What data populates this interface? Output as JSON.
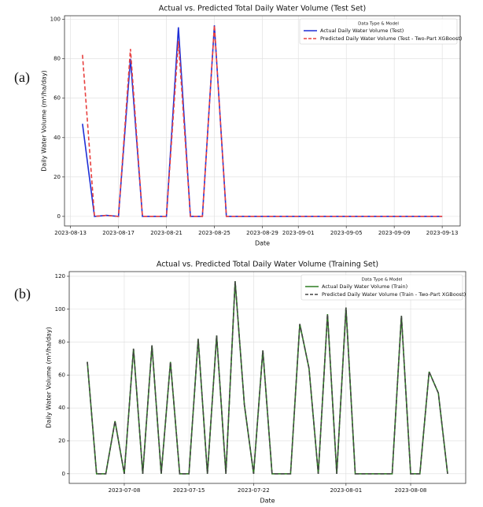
{
  "chart_data": [
    {
      "type": "line",
      "label": "(a)",
      "title": "Actual vs. Predicted Total Daily Water Volume (Test Set)",
      "x_label": "Date",
      "y_label": "Daily Water Volume (m³/ha/day)",
      "x": [
        "2023-08-14",
        "2023-08-15",
        "2023-08-16",
        "2023-08-17",
        "2023-08-18",
        "2023-08-19",
        "2023-08-20",
        "2023-08-21",
        "2023-08-22",
        "2023-08-23",
        "2023-08-24",
        "2023-08-25",
        "2023-08-26",
        "2023-08-27",
        "2023-08-28",
        "2023-08-29",
        "2023-08-30",
        "2023-08-31",
        "2023-09-01",
        "2023-09-02",
        "2023-09-03",
        "2023-09-04",
        "2023-09-05",
        "2023-09-06",
        "2023-09-07",
        "2023-09-08",
        "2023-09-09",
        "2023-09-10",
        "2023-09-11",
        "2023-09-12",
        "2023-09-13"
      ],
      "series": [
        {
          "name": "Actual Daily Water Volume (Test)",
          "color": "#1f2fd6",
          "linestyle": "solid",
          "values": [
            47,
            0,
            0.5,
            0,
            80,
            0,
            0,
            0,
            96,
            0,
            0,
            97,
            0,
            0,
            0,
            0,
            0,
            0,
            0,
            0,
            0,
            0,
            0,
            0,
            0,
            0,
            0,
            0,
            0,
            0,
            0
          ]
        },
        {
          "name": "Predicted Daily Water Volume (Test - Two-Part XGBoost)",
          "color": "#e8403f",
          "linestyle": "dashed",
          "values": [
            82,
            0,
            0.5,
            0,
            85,
            0,
            0,
            0,
            89,
            0,
            0,
            97,
            0,
            0,
            0,
            0,
            0,
            0,
            0,
            0,
            0,
            0,
            0,
            0,
            0,
            0,
            0,
            0,
            0,
            0,
            0
          ]
        }
      ],
      "xlim": [
        "2023-08-12T12:00",
        "2023-09-14T12:00"
      ],
      "xticks": [
        "2023-08-13",
        "2023-08-17",
        "2023-08-21",
        "2023-08-25",
        "2023-08-29",
        "2023-09-01",
        "2023-09-05",
        "2023-09-09",
        "2023-09-13"
      ],
      "ylim": [
        -4.85,
        101.85
      ],
      "yticks": [
        0,
        20,
        40,
        60,
        80,
        100
      ],
      "grid": true,
      "legend": "upper right",
      "legend_title": "Data Type & Model"
    },
    {
      "type": "line",
      "label": "(b)",
      "title": "Actual vs. Predicted Total Daily Water Volume (Training Set)",
      "x_label": "Date",
      "y_label": "Daily Water Volume (m³/ha/day)",
      "x": [
        "2023-07-04",
        "2023-07-05",
        "2023-07-06",
        "2023-07-07",
        "2023-07-08",
        "2023-07-09",
        "2023-07-10",
        "2023-07-11",
        "2023-07-12",
        "2023-07-13",
        "2023-07-14",
        "2023-07-15",
        "2023-07-16",
        "2023-07-17",
        "2023-07-18",
        "2023-07-19",
        "2023-07-20",
        "2023-07-21",
        "2023-07-22",
        "2023-07-23",
        "2023-07-24",
        "2023-07-25",
        "2023-07-26",
        "2023-07-27",
        "2023-07-28",
        "2023-07-29",
        "2023-07-30",
        "2023-07-31",
        "2023-08-01",
        "2023-08-02",
        "2023-08-03",
        "2023-08-04",
        "2023-08-05",
        "2023-08-06",
        "2023-08-07",
        "2023-08-08",
        "2023-08-09",
        "2023-08-10",
        "2023-08-11",
        "2023-08-12"
      ],
      "series": [
        {
          "name": "Actual Daily Water Volume (Train)",
          "color": "#2e7d22",
          "linestyle": "solid",
          "values": [
            68,
            0,
            0,
            32,
            0,
            76,
            0,
            78,
            0,
            68,
            0,
            0,
            82,
            0,
            84,
            0,
            117,
            42,
            0,
            75,
            0,
            0,
            0,
            91,
            64,
            0,
            97,
            0,
            101,
            0,
            0,
            0,
            0,
            0,
            96,
            0,
            0,
            62,
            49,
            0
          ]
        },
        {
          "name": "Predicted Daily Water Volume (Train - Two-Part XGBoost)",
          "color": "#444444",
          "linestyle": "dashed",
          "values": [
            68,
            0,
            0,
            32,
            0,
            76,
            0,
            78,
            0,
            68,
            0,
            0,
            82,
            0,
            84,
            0,
            117,
            42,
            0,
            75,
            0,
            0,
            0,
            91,
            64,
            0,
            97,
            0,
            101,
            0,
            0,
            0,
            0,
            0,
            96,
            0,
            0,
            62,
            49,
            0
          ]
        }
      ],
      "xlim": [
        "2023-07-02T01:00",
        "2023-08-13T23:00"
      ],
      "xticks": [
        "2023-07-08",
        "2023-07-15",
        "2023-07-22",
        "2023-08-01",
        "2023-08-08"
      ],
      "ylim": [
        -5.85,
        122.85
      ],
      "yticks": [
        0,
        20,
        40,
        60,
        80,
        100,
        120
      ],
      "grid": true,
      "legend": "upper right",
      "legend_title": "Data Type & Model"
    }
  ]
}
